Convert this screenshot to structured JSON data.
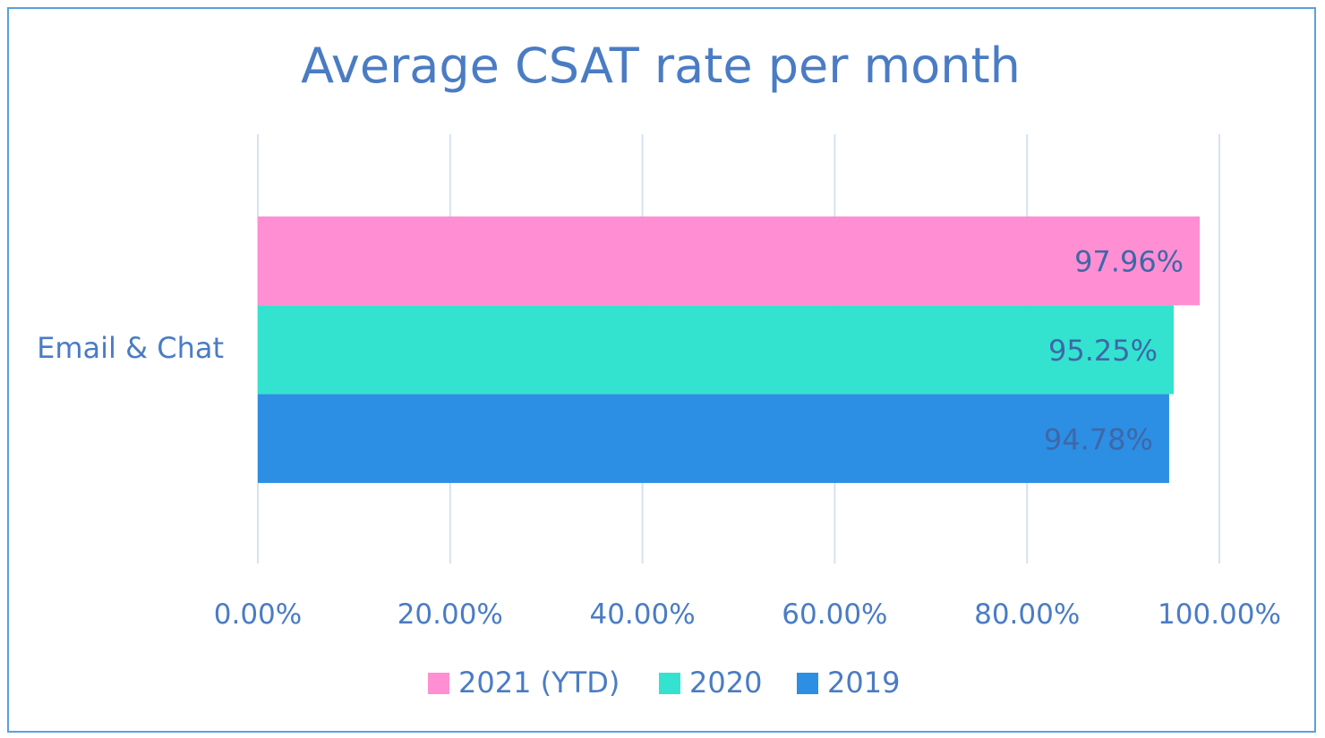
{
  "chart_data": {
    "type": "bar",
    "orientation": "horizontal",
    "title": "Average CSAT rate per month",
    "categories": [
      "Email & Chat"
    ],
    "series": [
      {
        "name": "2021 (YTD)",
        "values": [
          97.96
        ],
        "label": "97.96%",
        "color": "#ff8fd2"
      },
      {
        "name": "2020",
        "values": [
          95.25
        ],
        "label": "95.25%",
        "color": "#33e3cf"
      },
      {
        "name": "2019",
        "values": [
          94.78
        ],
        "label": "94.78%",
        "color": "#2c8fe3"
      }
    ],
    "xlim": [
      0,
      100
    ],
    "xticks": [
      "0.00%",
      "20.00%",
      "40.00%",
      "60.00%",
      "80.00%",
      "100.00%"
    ],
    "xlabel": "",
    "ylabel": "",
    "grid": "vertical",
    "legend": "bottom-center",
    "text_color": "#4a7cc4",
    "label_color": "#3f67a8"
  }
}
